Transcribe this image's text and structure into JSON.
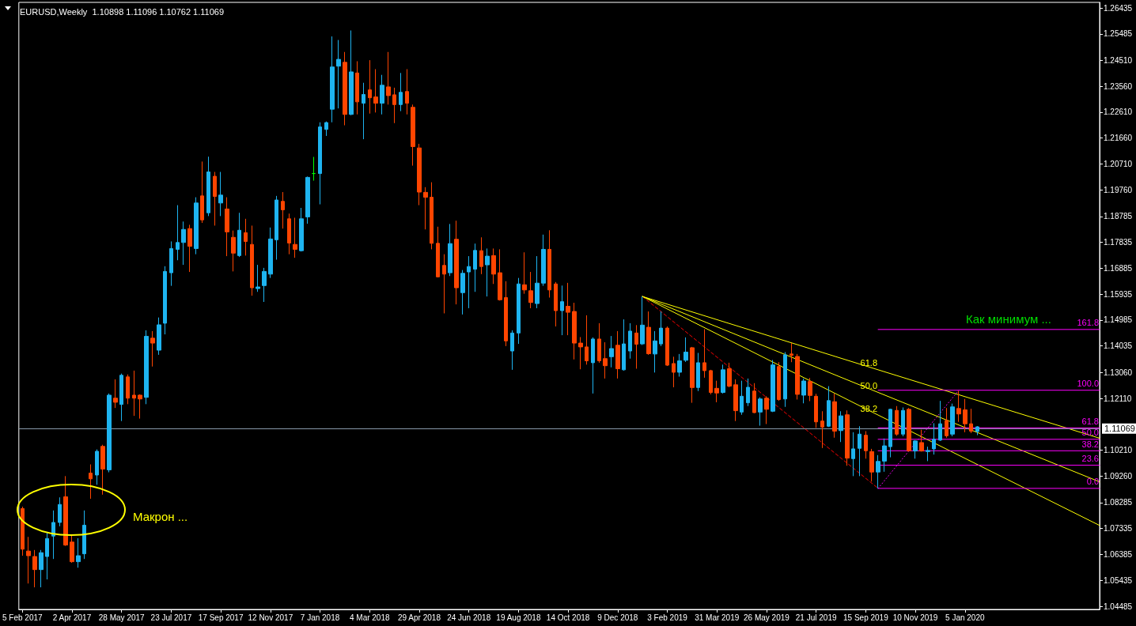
{
  "chart_data": {
    "type": "candlestick",
    "title": "EURUSD,Weekly  1.10898 1.11096 1.10762 1.11069",
    "grid": false,
    "colors": [
      "#ff4500",
      "#ff4500",
      "#ff4500",
      "#1eb4f0",
      "#1eb4f0",
      "#1eb4f0",
      "#1eb4f0",
      "#ff4500",
      "#ff4500",
      "#1eb4f0",
      "#1eb4f0",
      "#ff4500",
      "#1eb4f0",
      "#ff4500",
      "#1eb4f0",
      "#ff4500",
      "#1eb4f0",
      "#ff4500",
      "#ff4500",
      "#ff4500",
      "#1eb4f0",
      "#ff4500",
      "#1eb4f0",
      "#1eb4f0",
      "#1eb4f0",
      "#1eb4f0",
      "#1eb4f0",
      "#ff4500",
      "#1eb4f0",
      "#ff4500",
      "#1eb4f0",
      "#ff4500",
      "#1eb4f0",
      "#ff4500",
      "#ff4500",
      "#1eb4f0",
      "#ff4500",
      "#ff4500",
      "#1eb4f0",
      "#1eb4f0",
      "#1eb4f0",
      "#1eb4f0",
      "#ff4500",
      "#ff4500",
      "#ff4500",
      "#1eb4f0",
      "#1eb4f0",
      "#00ff00",
      "#1eb4f0",
      "#1eb4f0",
      "#1eb4f0",
      "#1eb4f0",
      "#ff4500",
      "#1eb4f0",
      "#ff4500",
      "#1eb4f0",
      "#ff4500",
      "#ff4500",
      "#1eb4f0",
      "#ff4500",
      "#ff4500",
      "#1eb4f0",
      "#ff4500",
      "#ff4500",
      "#ff4500",
      "#ff4500",
      "#ff4500",
      "#ff4500",
      "#ff4500",
      "#1eb4f0",
      "#ff4500",
      "#1eb4f0",
      "#1eb4f0",
      "#1eb4f0",
      "#ff4500",
      "#1eb4f0",
      "#ff4500",
      "#ff4500",
      "#ff4500",
      "#1eb4f0",
      "#1eb4f0",
      "#ff4500",
      "#ff4500",
      "#1eb4f0",
      "#1eb4f0",
      "#ff4500",
      "#ff4500",
      "#1eb4f0",
      "#ff4500",
      "#ff4500",
      "#ff4500",
      "#ff4500",
      "#1eb4f0",
      "#ff4500",
      "#ff4500",
      "#1eb4f0",
      "#ff4500",
      "#1eb4f0",
      "#1eb4f0",
      "#ff4500",
      "#1eb4f0",
      "#ff4500",
      "#1eb4f0",
      "#1eb4f0",
      "#ff4500",
      "#ff4500",
      "#1eb4f0",
      "#1eb4f0",
      "#ff4500",
      "#1eb4f0",
      "#ff4500",
      "#ff4500",
      "#ff4500",
      "#1eb4f0",
      "#ff4500",
      "#ff4500",
      "#1eb4f0",
      "#1eb4f0",
      "#ff4500",
      "#1eb4f0",
      "#ff4500",
      "#1eb4f0",
      "#ff4500",
      "#1eb4f0",
      "#ff4500",
      "#ff4500",
      "#1eb4f0",
      "#ff4500",
      "#ff4500",
      "#ff4500",
      "#1eb4f0",
      "#ff4500",
      "#1eb4f0",
      "#ff4500",
      "#1eb4f0",
      "#1eb4f0",
      "#ff4500",
      "#ff4500",
      "#1eb4f0",
      "#1eb4f0",
      "#1eb4f0",
      "#ff4500",
      "#1eb4f0",
      "#ff4500",
      "#1eb4f0",
      "#ff4500",
      "#1eb4f0",
      "#1eb4f0",
      "#1eb4f0",
      "#ff4500",
      "#1eb4f0",
      "#ff4500",
      "#ff4500",
      "#ff4500",
      "#1eb4f0"
    ],
    "xlim": [
      "2017-02-01",
      "2020-06-05"
    ],
    "ylim": [
      1.0437,
      1.2664
    ],
    "xticks": [
      {
        "value": "2017-02-05",
        "label": "5 Feb 2017"
      },
      {
        "value": "2017-04-02",
        "label": "2 Apr 2017"
      },
      {
        "value": "2017-05-28",
        "label": "28 May 2017"
      },
      {
        "value": "2017-07-23",
        "label": "23 Jul 2017"
      },
      {
        "value": "2017-09-17",
        "label": "17 Sep 2017"
      },
      {
        "value": "2017-11-12",
        "label": "12 Nov 2017"
      },
      {
        "value": "2018-01-07",
        "label": "7 Jan 2018"
      },
      {
        "value": "2018-03-04",
        "label": "4 Mar 2018"
      },
      {
        "value": "2018-04-29",
        "label": "29 Apr 2018"
      },
      {
        "value": "2018-06-24",
        "label": "24 Jun 2018"
      },
      {
        "value": "2018-08-19",
        "label": "19 Aug 2018"
      },
      {
        "value": "2018-10-14",
        "label": "14 Oct 2018"
      },
      {
        "value": "2018-12-09",
        "label": "9 Dec 2018"
      },
      {
        "value": "2019-02-03",
        "label": "3 Feb 2019"
      },
      {
        "value": "2019-03-31",
        "label": "31 Mar 2019"
      },
      {
        "value": "2019-05-26",
        "label": "26 May 2019"
      },
      {
        "value": "2019-07-21",
        "label": "21 Jul 2019"
      },
      {
        "value": "2019-09-15",
        "label": "15 Sep 2019"
      },
      {
        "value": "2019-11-10",
        "label": "10 Nov 2019"
      },
      {
        "value": "2020-01-05",
        "label": "5 Jan 2020"
      }
    ],
    "yticks": [
      1.04485,
      1.05435,
      1.06385,
      1.07335,
      1.08285,
      {
        "value": 1.0926,
        "label": "1.09260"
      },
      {
        "value": 1.1021,
        "label": "1.10210"
      },
      {
        "value": 1.1211,
        "label": "1.12110"
      },
      {
        "value": 1.1306,
        "label": "1.13060"
      },
      1.14035,
      1.14985,
      1.15935,
      1.16885,
      1.17835,
      1.18785,
      {
        "value": 1.1976,
        "label": "1.19760"
      },
      {
        "value": 1.2071,
        "label": "1.20710"
      },
      {
        "value": 1.2166,
        "label": "1.21660"
      },
      {
        "value": 1.2261,
        "label": "1.22610"
      },
      {
        "value": 1.2356,
        "label": "1.23560"
      },
      {
        "value": 1.2451,
        "label": "1.24510"
      },
      1.25485,
      1.26435
    ],
    "x": [
      "2017-02-05",
      "2017-02-12",
      "2017-02-19",
      "2017-02-26",
      "2017-03-05",
      "2017-03-12",
      "2017-03-19",
      "2017-03-26",
      "2017-04-02",
      "2017-04-09",
      "2017-04-16",
      "2017-04-23",
      "2017-04-30",
      "2017-05-07",
      "2017-05-14",
      "2017-05-21",
      "2017-05-28",
      "2017-06-04",
      "2017-06-11",
      "2017-06-18",
      "2017-06-25",
      "2017-07-02",
      "2017-07-09",
      "2017-07-16",
      "2017-07-23",
      "2017-07-30",
      "2017-08-06",
      "2017-08-13",
      "2017-08-20",
      "2017-08-27",
      "2017-09-03",
      "2017-09-10",
      "2017-09-17",
      "2017-09-24",
      "2017-10-01",
      "2017-10-08",
      "2017-10-15",
      "2017-10-22",
      "2017-10-29",
      "2017-11-05",
      "2017-11-12",
      "2017-11-19",
      "2017-11-26",
      "2017-12-03",
      "2017-12-10",
      "2017-12-17",
      "2017-12-24",
      "2017-12-31",
      "2018-01-07",
      "2018-01-14",
      "2018-01-21",
      "2018-01-28",
      "2018-02-04",
      "2018-02-11",
      "2018-02-18",
      "2018-02-25",
      "2018-03-04",
      "2018-03-11",
      "2018-03-18",
      "2018-03-25",
      "2018-04-01",
      "2018-04-08",
      "2018-04-15",
      "2018-04-22",
      "2018-04-29",
      "2018-05-06",
      "2018-05-13",
      "2018-05-20",
      "2018-05-27",
      "2018-06-03",
      "2018-06-10",
      "2018-06-17",
      "2018-06-24",
      "2018-07-01",
      "2018-07-08",
      "2018-07-15",
      "2018-07-22",
      "2018-07-29",
      "2018-08-05",
      "2018-08-12",
      "2018-08-19",
      "2018-08-26",
      "2018-09-02",
      "2018-09-09",
      "2018-09-16",
      "2018-09-23",
      "2018-09-30",
      "2018-10-07",
      "2018-10-14",
      "2018-10-21",
      "2018-10-28",
      "2018-11-04",
      "2018-11-11",
      "2018-11-18",
      "2018-11-25",
      "2018-12-02",
      "2018-12-09",
      "2018-12-16",
      "2018-12-23",
      "2018-12-30",
      "2019-01-06",
      "2019-01-13",
      "2019-01-20",
      "2019-01-27",
      "2019-02-03",
      "2019-02-10",
      "2019-02-17",
      "2019-02-24",
      "2019-03-03",
      "2019-03-10",
      "2019-03-17",
      "2019-03-24",
      "2019-03-31",
      "2019-04-07",
      "2019-04-14",
      "2019-04-21",
      "2019-04-28",
      "2019-05-05",
      "2019-05-12",
      "2019-05-19",
      "2019-05-26",
      "2019-06-02",
      "2019-06-09",
      "2019-06-16",
      "2019-06-23",
      "2019-06-30",
      "2019-07-07",
      "2019-07-14",
      "2019-07-21",
      "2019-07-28",
      "2019-08-04",
      "2019-08-11",
      "2019-08-18",
      "2019-08-25",
      "2019-09-01",
      "2019-09-08",
      "2019-09-15",
      "2019-09-22",
      "2019-09-29",
      "2019-10-06",
      "2019-10-13",
      "2019-10-20",
      "2019-10-27",
      "2019-11-03",
      "2019-11-10",
      "2019-11-17",
      "2019-11-24",
      "2019-12-01",
      "2019-12-08",
      "2019-12-15",
      "2019-12-22",
      "2019-12-29",
      "2020-01-05",
      "2020-01-12",
      "2020-01-19"
    ],
    "ohlc": [
      [
        1.0807,
        1.0814,
        1.0634,
        1.0658
      ],
      [
        1.0651,
        1.0703,
        1.0532,
        1.0634
      ],
      [
        1.0631,
        1.0655,
        1.0518,
        1.0583
      ],
      [
        1.0583,
        1.0655,
        1.0518,
        1.0645
      ],
      [
        1.0631,
        1.072,
        1.0547,
        1.0697
      ],
      [
        1.0706,
        1.08,
        1.0622,
        1.0756
      ],
      [
        1.0756,
        1.0848,
        1.0742,
        1.0822
      ],
      [
        1.085,
        1.0926,
        1.067,
        1.0673
      ],
      [
        1.0684,
        1.071,
        1.0608,
        1.0612
      ],
      [
        1.0612,
        1.0698,
        1.059,
        1.0634
      ],
      [
        1.0641,
        1.08,
        1.0622,
        1.0746
      ],
      [
        1.0937,
        1.0969,
        1.0843,
        1.0916
      ],
      [
        1.093,
        1.1024,
        1.0894,
        1.1017
      ],
      [
        1.1035,
        1.1041,
        1.0858,
        1.0952
      ],
      [
        1.0949,
        1.1229,
        1.094,
        1.1223
      ],
      [
        1.1212,
        1.1281,
        1.1176,
        1.1197
      ],
      [
        1.1189,
        1.1302,
        1.1128,
        1.1296
      ],
      [
        1.129,
        1.1299,
        1.119,
        1.1212
      ],
      [
        1.1223,
        1.1313,
        1.1147,
        1.1212
      ],
      [
        1.1223,
        1.1226,
        1.1137,
        1.1209
      ],
      [
        1.1215,
        1.1461,
        1.119,
        1.1439
      ],
      [
        1.1432,
        1.1458,
        1.1328,
        1.1414
      ],
      [
        1.1388,
        1.1508,
        1.1371,
        1.1481
      ],
      [
        1.1487,
        1.1696,
        1.1446,
        1.1677
      ],
      [
        1.1672,
        1.1787,
        1.1624,
        1.1761
      ],
      [
        1.1758,
        1.192,
        1.1718,
        1.1783
      ],
      [
        1.1783,
        1.186,
        1.1701,
        1.1831
      ],
      [
        1.1834,
        1.1848,
        1.1675,
        1.1769
      ],
      [
        1.1761,
        1.1949,
        1.174,
        1.1928
      ],
      [
        1.1954,
        1.208,
        1.1855,
        1.1866
      ],
      [
        1.1892,
        1.2098,
        1.188,
        1.2042
      ],
      [
        1.2026,
        1.2042,
        1.1845,
        1.1952
      ],
      [
        1.1928,
        1.2042,
        1.188,
        1.1957
      ],
      [
        1.1906,
        1.1949,
        1.1733,
        1.1822
      ],
      [
        1.1802,
        1.1827,
        1.1677,
        1.1744
      ],
      [
        1.1735,
        1.1892,
        1.173,
        1.1828
      ],
      [
        1.1819,
        1.187,
        1.1735,
        1.1787
      ],
      [
        1.1776,
        1.1845,
        1.1588,
        1.1617
      ],
      [
        1.1614,
        1.1701,
        1.1602,
        1.162
      ],
      [
        1.1625,
        1.169,
        1.1565,
        1.1677
      ],
      [
        1.1667,
        1.1838,
        1.1653,
        1.1796
      ],
      [
        1.1793,
        1.1954,
        1.172,
        1.1939
      ],
      [
        1.1934,
        1.1968,
        1.1834,
        1.1903
      ],
      [
        1.187,
        1.1889,
        1.174,
        1.1781
      ],
      [
        1.1776,
        1.1874,
        1.1727,
        1.1758
      ],
      [
        1.1753,
        1.191,
        1.175,
        1.187
      ],
      [
        1.1877,
        1.2025,
        1.1852,
        1.2022
      ],
      [
        1.2036,
        1.2097,
        1.201,
        1.2036
      ],
      [
        1.2036,
        1.2224,
        1.1923,
        1.2207
      ],
      [
        1.2198,
        1.2227,
        1.2174,
        1.2223
      ],
      [
        1.2272,
        1.2539,
        1.2224,
        1.2427
      ],
      [
        1.243,
        1.2526,
        1.2275,
        1.2455
      ],
      [
        1.2444,
        1.2482,
        1.2213,
        1.2253
      ],
      [
        1.2253,
        1.2561,
        1.225,
        1.2409
      ],
      [
        1.2405,
        1.2448,
        1.2253,
        1.2299
      ],
      [
        1.2294,
        1.2369,
        1.2162,
        1.2326
      ],
      [
        1.2343,
        1.2452,
        1.2256,
        1.2314
      ],
      [
        1.2317,
        1.2419,
        1.226,
        1.2294
      ],
      [
        1.2294,
        1.2398,
        1.2253,
        1.236
      ],
      [
        1.2354,
        1.2482,
        1.2289,
        1.2322
      ],
      [
        1.2325,
        1.2351,
        1.2221,
        1.2289
      ],
      [
        1.2289,
        1.2405,
        1.2265,
        1.2334
      ],
      [
        1.2337,
        1.2419,
        1.2253,
        1.2294
      ],
      [
        1.2279,
        1.2289,
        1.2065,
        1.2135
      ],
      [
        1.213,
        1.2145,
        1.192,
        1.1968
      ],
      [
        1.1967,
        1.1986,
        1.1831,
        1.1949
      ],
      [
        1.1949,
        1.2004,
        1.1758,
        1.178
      ],
      [
        1.178,
        1.1841,
        1.1655,
        1.1657
      ],
      [
        1.1699,
        1.174,
        1.1523,
        1.1667
      ],
      [
        1.1672,
        1.1851,
        1.166,
        1.1779
      ],
      [
        1.1795,
        1.1863,
        1.1556,
        1.1617
      ],
      [
        1.1599,
        1.1682,
        1.1519,
        1.167
      ],
      [
        1.1675,
        1.1733,
        1.1542,
        1.1695
      ],
      [
        1.1685,
        1.1779,
        1.1602,
        1.1754
      ],
      [
        1.1753,
        1.1802,
        1.1667,
        1.1695
      ],
      [
        1.1701,
        1.1761,
        1.1585,
        1.1733
      ],
      [
        1.1735,
        1.1761,
        1.1631,
        1.1667
      ],
      [
        1.1672,
        1.1758,
        1.157,
        1.1573
      ],
      [
        1.1581,
        1.1641,
        1.1403,
        1.1422
      ],
      [
        1.1385,
        1.1461,
        1.1316,
        1.1451
      ],
      [
        1.1451,
        1.1653,
        1.1411,
        1.1631
      ],
      [
        1.1628,
        1.1747,
        1.1595,
        1.1609
      ],
      [
        1.1606,
        1.1675,
        1.1542,
        1.1563
      ],
      [
        1.1559,
        1.1733,
        1.1542,
        1.1634
      ],
      [
        1.1634,
        1.1812,
        1.1624,
        1.1758
      ],
      [
        1.1758,
        1.1828,
        1.1581,
        1.1609
      ],
      [
        1.1631,
        1.1638,
        1.1475,
        1.1533
      ],
      [
        1.1533,
        1.1625,
        1.1443,
        1.1566
      ],
      [
        1.1549,
        1.1635,
        1.1443,
        1.1527
      ],
      [
        1.153,
        1.1562,
        1.1354,
        1.1414
      ],
      [
        1.1414,
        1.1436,
        1.1318,
        1.14
      ],
      [
        1.14,
        1.1516,
        1.1335,
        1.1349
      ],
      [
        1.1342,
        1.1435,
        1.1229,
        1.1429
      ],
      [
        1.1429,
        1.1487,
        1.1342,
        1.1349
      ],
      [
        1.1357,
        1.1417,
        1.1284,
        1.1331
      ],
      [
        1.1364,
        1.144,
        1.1325,
        1.1394
      ],
      [
        1.1406,
        1.1458,
        1.1284,
        1.132
      ],
      [
        1.1316,
        1.1501,
        1.1313,
        1.1411
      ],
      [
        1.1385,
        1.1487,
        1.1357,
        1.1458
      ],
      [
        1.1451,
        1.148,
        1.132,
        1.141
      ],
      [
        1.1411,
        1.1585,
        1.1407,
        1.148
      ],
      [
        1.1472,
        1.153,
        1.1371,
        1.1375
      ],
      [
        1.1374,
        1.1458,
        1.1306,
        1.1422
      ],
      [
        1.1411,
        1.153,
        1.1403,
        1.1469
      ],
      [
        1.1469,
        1.1475,
        1.133,
        1.1333
      ],
      [
        1.1339,
        1.1364,
        1.1252,
        1.1307
      ],
      [
        1.1307,
        1.1374,
        1.1291,
        1.1349
      ],
      [
        1.1351,
        1.1435,
        1.1345,
        1.1381
      ],
      [
        1.1397,
        1.14,
        1.1195,
        1.1251
      ],
      [
        1.1251,
        1.1378,
        1.1238,
        1.1342
      ],
      [
        1.1342,
        1.1465,
        1.1287,
        1.1313
      ],
      [
        1.1313,
        1.1316,
        1.1226,
        1.1233
      ],
      [
        1.1248,
        1.1276,
        1.1197,
        1.1231
      ],
      [
        1.1233,
        1.1335,
        1.1229,
        1.1316
      ],
      [
        1.132,
        1.1342,
        1.1252,
        1.1256
      ],
      [
        1.1261,
        1.1281,
        1.1128,
        1.1166
      ],
      [
        1.1161,
        1.1276,
        1.1151,
        1.1219
      ],
      [
        1.1195,
        1.1284,
        1.1183,
        1.1252
      ],
      [
        1.1238,
        1.1267,
        1.1157,
        1.1159
      ],
      [
        1.1161,
        1.1215,
        1.1111,
        1.1209
      ],
      [
        1.1212,
        1.1219,
        1.1117,
        1.1171
      ],
      [
        1.1164,
        1.1352,
        1.1161,
        1.1334
      ],
      [
        1.1328,
        1.1344,
        1.1202,
        1.1207
      ],
      [
        1.1209,
        1.1381,
        1.118,
        1.1371
      ],
      [
        1.1374,
        1.1414,
        1.1344,
        1.1369
      ],
      [
        1.1365,
        1.1374,
        1.1207,
        1.1226
      ],
      [
        1.1223,
        1.1284,
        1.1193,
        1.1275
      ],
      [
        1.1273,
        1.1286,
        1.1201,
        1.1222
      ],
      [
        1.1219,
        1.1228,
        1.1103,
        1.1125
      ],
      [
        1.1128,
        1.1164,
        1.1029,
        1.1106
      ],
      [
        1.1109,
        1.1256,
        1.1106,
        1.1203
      ],
      [
        1.1199,
        1.1229,
        1.1067,
        1.1091
      ],
      [
        1.1093,
        1.1164,
        1.1051,
        1.1147
      ],
      [
        1.1151,
        1.1167,
        1.0964,
        1.0992
      ],
      [
        1.099,
        1.1087,
        1.0926,
        1.1026
      ],
      [
        1.1028,
        1.1109,
        1.0926,
        1.108
      ],
      [
        1.1076,
        1.1091,
        1.099,
        1.1019
      ],
      [
        1.1016,
        1.1026,
        1.0906,
        1.0941
      ],
      [
        1.0941,
        1.1003,
        1.0881,
        1.098
      ],
      [
        1.0981,
        1.1064,
        1.0942,
        1.1037
      ],
      [
        1.1034,
        1.1173,
        1.0995,
        1.1171
      ],
      [
        1.1167,
        1.1183,
        1.1074,
        1.108
      ],
      [
        1.108,
        1.1178,
        1.1072,
        1.1167
      ],
      [
        1.1171,
        1.1176,
        1.1016,
        1.1019
      ],
      [
        1.1018,
        1.1058,
        1.099,
        1.1055
      ],
      [
        1.1049,
        1.1096,
        1.1016,
        1.1018
      ],
      [
        1.1016,
        1.1034,
        1.0981,
        1.102
      ],
      [
        1.1026,
        1.112,
        1.1005,
        1.1061
      ],
      [
        1.1058,
        1.1202,
        1.1055,
        1.1118
      ],
      [
        1.113,
        1.1176,
        1.1067,
        1.1074
      ],
      [
        1.108,
        1.1192,
        1.1072,
        1.118
      ],
      [
        1.1174,
        1.1238,
        1.1125,
        1.1154
      ],
      [
        1.1169,
        1.1209,
        1.1087,
        1.1118
      ],
      [
        1.1118,
        1.1173,
        1.1084,
        1.1091
      ],
      [
        1.10898,
        1.11096,
        1.10762,
        1.11069
      ]
    ],
    "series": [
      {
        "type": "line",
        "color": "#ff0000",
        "line_style": "dashed",
        "x": [
          "2019-01-06",
          "2019-09-29"
        ],
        "values": [
          1.1585,
          1.0881
        ]
      },
      {
        "type": "line",
        "name": "61.8",
        "color": "#ffff00",
        "x": [
          "2019-01-06",
          "2019-09-29",
          "2020-06-05"
        ],
        "values": [
          1.1585,
          1.1316,
          1.1065
        ]
      },
      {
        "type": "line",
        "name": "50.0",
        "color": "#ffff00",
        "x": [
          "2019-01-06",
          "2019-09-29",
          "2020-06-05"
        ],
        "values": [
          1.1585,
          1.1233,
          1.0905
        ]
      },
      {
        "type": "line",
        "name": "38.2",
        "color": "#ffff00",
        "x": [
          "2019-01-06",
          "2019-09-29",
          "2020-06-05"
        ],
        "values": [
          1.1585,
          1.115,
          1.0745
        ]
      },
      {
        "type": "line",
        "color": "#ff00ff",
        "line_style": "dotted",
        "x": [
          "2019-09-29",
          "2019-12-29"
        ],
        "values": [
          1.0881,
          1.1241
        ]
      },
      {
        "type": "line",
        "name": "0.0",
        "color": "#ff00ff",
        "x": [
          "2019-09-29",
          "2020-06-05"
        ],
        "values": [
          1.0881,
          1.0881
        ]
      },
      {
        "type": "line",
        "name": "23.6",
        "color": "#ff00ff",
        "x": [
          "2019-09-29",
          "2020-06-05"
        ],
        "values": [
          1.0966,
          1.0966
        ]
      },
      {
        "type": "line",
        "name": "38.2",
        "color": "#ff00ff",
        "x": [
          "2019-09-29",
          "2020-06-05"
        ],
        "values": [
          1.1019,
          1.1019
        ]
      },
      {
        "type": "line",
        "name": "50.0",
        "color": "#ff00ff",
        "x": [
          "2019-09-29",
          "2020-06-05"
        ],
        "values": [
          1.1061,
          1.1061
        ]
      },
      {
        "type": "line",
        "name": "61.8",
        "color": "#ff00ff",
        "x": [
          "2019-09-29",
          "2020-06-05"
        ],
        "values": [
          1.1103,
          1.1103
        ]
      },
      {
        "type": "line",
        "name": "100.0",
        "color": "#ff00ff",
        "x": [
          "2019-09-29",
          "2020-06-05"
        ],
        "values": [
          1.1241,
          1.1241
        ]
      },
      {
        "type": "line",
        "name": "161.8",
        "color": "#ff00ff",
        "x": [
          "2019-09-29",
          "2020-06-05"
        ],
        "values": [
          1.1464,
          1.1464
        ]
      }
    ],
    "ref_lines": [
      {
        "axis": "y",
        "value": 1.11069,
        "label": "1.11069",
        "color": "#8899aa"
      }
    ],
    "annotations": [
      "Макрон ...",
      "Как минимум ..."
    ]
  }
}
